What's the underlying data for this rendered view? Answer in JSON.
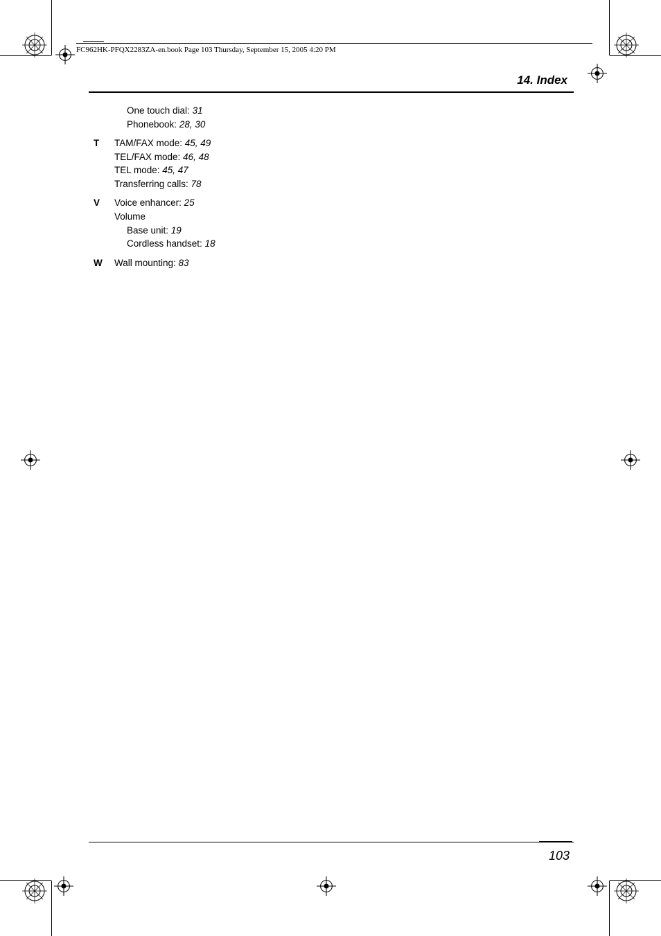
{
  "header": {
    "running_text": "FC962HK-PFQX2283ZA-en.book  Page 103  Thursday, September 15, 2005  4:20 PM"
  },
  "section": {
    "title": "14. Index"
  },
  "index": {
    "carryover": [
      {
        "label": "One touch dial:",
        "pages": "31"
      },
      {
        "label": "Phonebook:",
        "pages": "28, 30"
      }
    ],
    "groups": [
      {
        "letter": "T",
        "entries": [
          {
            "label": "TAM/FAX mode:",
            "pages": "45, 49"
          },
          {
            "label": "TEL/FAX mode:",
            "pages": "46, 48"
          },
          {
            "label": "TEL mode:",
            "pages": "45, 47"
          },
          {
            "label": "Transferring calls:",
            "pages": "78"
          }
        ]
      },
      {
        "letter": "V",
        "entries": [
          {
            "label": "Voice enhancer:",
            "pages": "25"
          },
          {
            "label": "Volume",
            "pages": ""
          },
          {
            "label": "Base unit:",
            "pages": "19",
            "sub": true
          },
          {
            "label": "Cordless handset:",
            "pages": "18",
            "sub": true
          }
        ]
      },
      {
        "letter": "W",
        "entries": [
          {
            "label": "Wall mounting:",
            "pages": "83"
          }
        ]
      }
    ]
  },
  "footer": {
    "page_number": "103"
  },
  "style": {
    "colors": {
      "text": "#000000",
      "bg": "#ffffff"
    },
    "fonts": {
      "body_size": 13.5,
      "title_size": 17,
      "header_size": 11,
      "pagenum_size": 18
    }
  }
}
